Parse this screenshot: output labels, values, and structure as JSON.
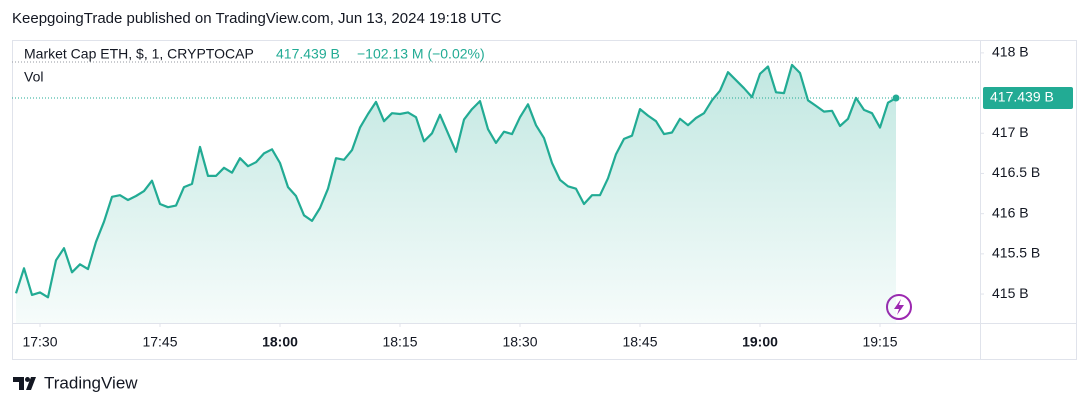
{
  "header": "KeepgoingTrade published on TradingView.com, Jun 13, 2024 19:18 UTC",
  "footer": "TradingView",
  "chart_data": {
    "type": "area",
    "title": "Market Cap ETH, $, 1, CRYPTOCAP",
    "last_price": {
      "value": 417.439,
      "label": "417.439 B"
    },
    "change": "−102.13 M (−0.02%)",
    "indicator": "Vol",
    "color": "#22ab94",
    "x": [
      "17:27",
      "17:28",
      "17:29",
      "17:30",
      "17:31",
      "17:32",
      "17:33",
      "17:34",
      "17:35",
      "17:36",
      "17:37",
      "17:38",
      "17:39",
      "17:40",
      "17:41",
      "17:42",
      "17:43",
      "17:44",
      "17:45",
      "17:46",
      "17:47",
      "17:48",
      "17:49",
      "17:50",
      "17:51",
      "17:52",
      "17:53",
      "17:54",
      "17:55",
      "17:56",
      "17:57",
      "17:58",
      "17:59",
      "18:00",
      "18:01",
      "18:02",
      "18:03",
      "18:04",
      "18:05",
      "18:06",
      "18:07",
      "18:08",
      "18:09",
      "18:10",
      "18:11",
      "18:12",
      "18:13",
      "18:14",
      "18:15",
      "18:16",
      "18:17",
      "18:18",
      "18:19",
      "18:20",
      "18:21",
      "18:22",
      "18:23",
      "18:24",
      "18:25",
      "18:26",
      "18:27",
      "18:28",
      "18:29",
      "18:30",
      "18:31",
      "18:32",
      "18:33",
      "18:34",
      "18:35",
      "18:36",
      "18:37",
      "18:38",
      "18:39",
      "18:40",
      "18:41",
      "18:42",
      "18:43",
      "18:44",
      "18:45",
      "18:46",
      "18:47",
      "18:48",
      "18:49",
      "18:50",
      "18:51",
      "18:52",
      "18:53",
      "18:54",
      "18:55",
      "18:56",
      "18:57",
      "18:58",
      "18:59",
      "19:00",
      "19:01",
      "19:02",
      "19:03",
      "19:04",
      "19:05",
      "19:06",
      "19:07",
      "19:08",
      "19:09",
      "19:10",
      "19:11",
      "19:12",
      "19:13",
      "19:14",
      "19:15",
      "19:16",
      "19:17"
    ],
    "values": [
      415.01,
      415.32,
      414.99,
      415.02,
      414.96,
      415.42,
      415.57,
      415.27,
      415.37,
      415.31,
      415.65,
      415.9,
      416.21,
      416.23,
      416.17,
      416.22,
      416.28,
      416.41,
      416.12,
      416.08,
      416.1,
      416.33,
      416.37,
      416.83,
      416.47,
      416.47,
      416.57,
      416.51,
      416.69,
      416.59,
      416.64,
      416.75,
      416.8,
      416.63,
      416.33,
      416.22,
      415.98,
      415.91,
      416.07,
      416.31,
      416.69,
      416.67,
      416.79,
      417.07,
      417.24,
      417.39,
      417.15,
      417.25,
      417.24,
      417.26,
      417.2,
      416.9,
      417.0,
      417.23,
      417.0,
      416.77,
      417.17,
      417.3,
      417.4,
      417.05,
      416.88,
      417.02,
      416.99,
      417.2,
      417.36,
      417.1,
      416.94,
      416.63,
      416.42,
      416.34,
      416.31,
      416.12,
      416.23,
      416.23,
      416.44,
      416.74,
      416.93,
      416.97,
      417.3,
      417.22,
      417.15,
      416.99,
      417.01,
      417.18,
      417.1,
      417.19,
      417.25,
      417.41,
      417.53,
      417.76,
      417.66,
      417.56,
      417.45,
      417.74,
      417.83,
      417.51,
      417.5,
      417.85,
      417.75,
      417.41,
      417.34,
      417.27,
      417.28,
      417.09,
      417.18,
      417.44,
      417.29,
      417.25,
      417.07,
      417.38,
      417.439
    ],
    "ylim": [
      414.64,
      418.16
    ],
    "yticks": [
      {
        "value": 415,
        "label": "415 B"
      },
      {
        "value": 415.5,
        "label": "415.5 B"
      },
      {
        "value": 416,
        "label": "416 B"
      },
      {
        "value": 416.5,
        "label": "416.5 B"
      },
      {
        "value": 417,
        "label": "417 B"
      },
      {
        "value": 418,
        "label": "418 B"
      }
    ],
    "xticks": [
      "17:30",
      "17:45",
      "18:00",
      "18:15",
      "18:30",
      "18:45",
      "19:00",
      "19:15"
    ],
    "grid": false
  }
}
